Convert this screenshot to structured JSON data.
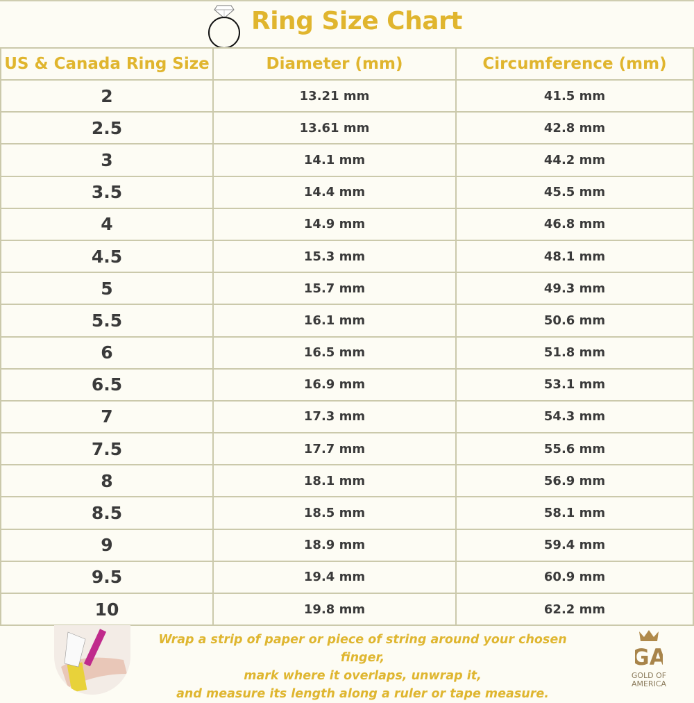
{
  "title": "Ring Size Chart",
  "colors": {
    "accent": "#e0b52e",
    "text": "#3a3a3a",
    "grid": "#cbc9ab",
    "background": "#fdfcf4"
  },
  "table": {
    "headers": [
      "US & Canada Ring Size",
      "Diameter (mm)",
      "Circumference (mm)"
    ],
    "rows": [
      [
        "2",
        "13.21 mm",
        "41.5 mm"
      ],
      [
        "2.5",
        "13.61 mm",
        "42.8 mm"
      ],
      [
        "3",
        "14.1 mm",
        "44.2 mm"
      ],
      [
        "3.5",
        "14.4 mm",
        "45.5 mm"
      ],
      [
        "4",
        "14.9 mm",
        "46.8 mm"
      ],
      [
        "4.5",
        "15.3 mm",
        "48.1 mm"
      ],
      [
        "5",
        "15.7 mm",
        "49.3 mm"
      ],
      [
        "5.5",
        "16.1 mm",
        "50.6 mm"
      ],
      [
        "6",
        "16.5 mm",
        "51.8 mm"
      ],
      [
        "6.5",
        "16.9 mm",
        "53.1 mm"
      ],
      [
        "7",
        "17.3 mm",
        "54.3 mm"
      ],
      [
        "7.5",
        "17.7 mm",
        "55.6 mm"
      ],
      [
        "8",
        "18.1 mm",
        "56.9 mm"
      ],
      [
        "8.5",
        "18.5 mm",
        "58.1 mm"
      ],
      [
        "9",
        "18.9 mm",
        "59.4 mm"
      ],
      [
        "9.5",
        "19.4 mm",
        "60.9 mm"
      ],
      [
        "10",
        "19.8 mm",
        "62.2 mm"
      ]
    ]
  },
  "footer": {
    "instructions": [
      "Wrap a strip of paper or piece of string around your chosen finger,",
      "mark where it overlaps, unwrap it,",
      "and measure its length along a ruler or tape measure."
    ],
    "logo": {
      "monogram": "GA",
      "line1": "GOLD OF",
      "line2": "AMERICA"
    }
  }
}
